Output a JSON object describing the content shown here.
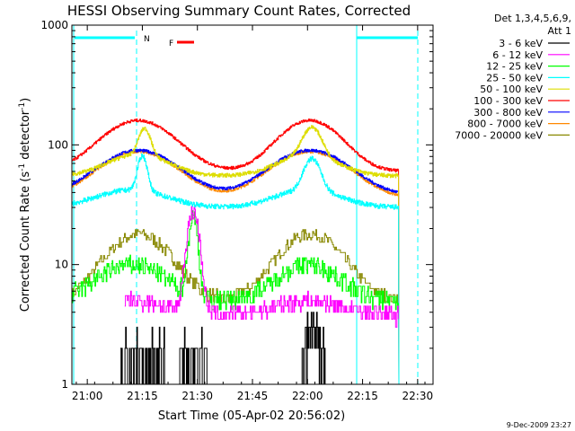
{
  "chart_data": {
    "type": "line",
    "title": "HESSI Observing Summary Count Rates, Corrected",
    "xlabel": "Start Time (05-Apr-02 20:56:02)",
    "ylabel_main": "Corrected Count Rate (s",
    "ylabel_sup1": "-1",
    "ylabel_mid": " detector",
    "ylabel_sup2": "-1",
    "ylabel_end": ")",
    "yscale": "log",
    "ylim": [
      1,
      1000
    ],
    "xlim_minutes": [
      20.93,
      22.57
    ],
    "x_ticks": [
      {
        "label": "21:00",
        "m": 21.0
      },
      {
        "label": "21:15",
        "m": 21.25
      },
      {
        "label": "21:30",
        "m": 21.5
      },
      {
        "label": "21:45",
        "m": 21.75
      },
      {
        "label": "22:00",
        "m": 22.0
      },
      {
        "label": "22:15",
        "m": 22.25
      },
      {
        "label": "22:30",
        "m": 22.5
      }
    ],
    "y_ticks": [
      {
        "label": "1",
        "v": 1
      },
      {
        "label": "10",
        "v": 10
      },
      {
        "label": "100",
        "v": 100
      },
      {
        "label": "1000",
        "v": 1000
      }
    ],
    "legend_header": [
      "Det 1,3,4,5,6,9,",
      "Att 1"
    ],
    "series": [
      {
        "name": "3 - 6 keV",
        "color": "#000000"
      },
      {
        "name": "6 - 12 keV",
        "color": "#ff00ff"
      },
      {
        "name": "12 - 25 keV",
        "color": "#00ff00"
      },
      {
        "name": "25 - 50 keV",
        "color": "#00ffff"
      },
      {
        "name": "50 - 100 keV",
        "color": "#dddd00"
      },
      {
        "name": "100 - 300 keV",
        "color": "#ff0000"
      },
      {
        "name": "300 - 800 keV",
        "color": "#0000ff"
      },
      {
        "name": "800 - 7000 keV",
        "color": "#ff8800"
      },
      {
        "name": "7000 - 20000 keV",
        "color": "#888800"
      }
    ],
    "flags": [
      {
        "label": "N",
        "color": "#00ffff"
      },
      {
        "label": "F",
        "color": "#ff0000"
      }
    ],
    "footer_date": "9-Dec-2009 23:27"
  }
}
